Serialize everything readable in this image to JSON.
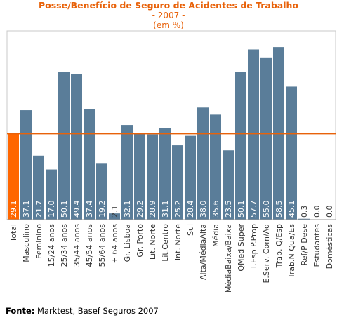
{
  "chart_data": {
    "type": "bar",
    "title": "Posse/Benefício de Seguro de Acidentes de Trabalho",
    "subtitle": "- 2007 -",
    "unit": "(em %)",
    "categories": [
      "Total",
      "Masculino",
      "Feminino",
      "15/24 anos",
      "25/34 anos",
      "35/44 anos",
      "45/54 anos",
      "55/64 anos",
      "+ 64 anos",
      "Gr. Lisboa",
      "Gr. Porto",
      "Lit. Norte",
      "Lit.Centro",
      "Int. Norte",
      "Sul",
      "Alta/MédiaAlta",
      "Média",
      "MédiaBaixa/Baixa",
      "QMed Super",
      "T.Esp P.Prop",
      "E.Serv. Com/Ad",
      "Trab. Q/Esp",
      "Trab.N Qua/Es",
      "Ref/P Dese",
      "Estudantes",
      "Domésticas"
    ],
    "values": [
      29.1,
      37.1,
      21.7,
      17.0,
      50.1,
      49.4,
      37.4,
      19.2,
      2.1,
      32.1,
      29.2,
      28.9,
      31.1,
      25.2,
      28.4,
      38.0,
      35.6,
      23.5,
      50.1,
      57.7,
      55.0,
      58.5,
      45.1,
      0.3,
      0.0,
      0.0
    ],
    "value_labels": [
      "29.1",
      "37.1",
      "21.7",
      "17.0",
      "50.1",
      "49.4",
      "37.4",
      "19.2",
      "2.1",
      "32.1",
      "29.2",
      "28.9",
      "31.1",
      "25.2",
      "28.4",
      "38.0",
      "35.6",
      "23.5",
      "50.1",
      "57.7",
      "55.0",
      "58.5",
      "45.1",
      "0.3",
      "0.0",
      "0.0"
    ],
    "highlight_index": 0,
    "reference_line_value": 29.1,
    "ylim": [
      0,
      64
    ],
    "colors": {
      "bar": "#5a7d99",
      "highlight": "#ff6600",
      "line": "#e8620a",
      "title": "#e8620a"
    }
  },
  "source": {
    "label": "Fonte:",
    "text": " Marktest, Basef Seguros 2007"
  }
}
